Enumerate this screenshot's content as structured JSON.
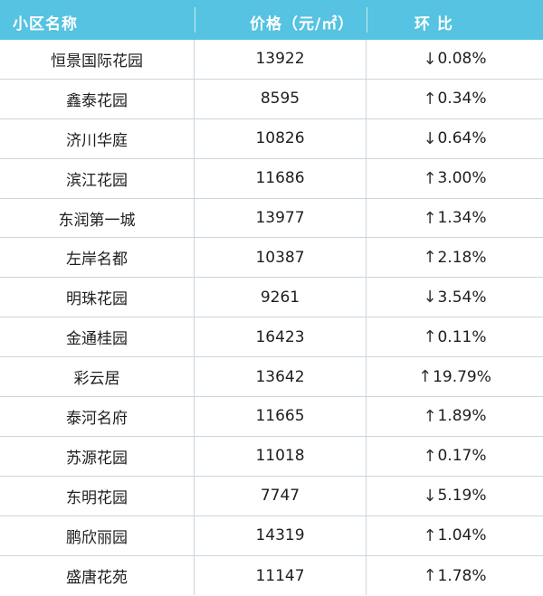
{
  "table": {
    "headers": {
      "name": "小区名称",
      "price": "价格（元/㎡）",
      "change": "环比"
    },
    "rows": [
      {
        "name": "恒景国际花园",
        "price": "13922",
        "direction": "down",
        "arrow": "↓",
        "change": "0.08%"
      },
      {
        "name": "鑫泰花园",
        "price": "8595",
        "direction": "up",
        "arrow": "↑",
        "change": "0.34%"
      },
      {
        "name": "济川华庭",
        "price": "10826",
        "direction": "down",
        "arrow": "↓",
        "change": "0.64%"
      },
      {
        "name": "滨江花园",
        "price": "11686",
        "direction": "up",
        "arrow": "↑",
        "change": "3.00%"
      },
      {
        "name": "东润第一城",
        "price": "13977",
        "direction": "up",
        "arrow": "↑",
        "change": "1.34%"
      },
      {
        "name": "左岸名都",
        "price": "10387",
        "direction": "up",
        "arrow": "↑",
        "change": "2.18%"
      },
      {
        "name": "明珠花园",
        "price": "9261",
        "direction": "down",
        "arrow": "↓",
        "change": "3.54%"
      },
      {
        "name": "金通桂园",
        "price": "16423",
        "direction": "up",
        "arrow": "↑",
        "change": "0.11%"
      },
      {
        "name": "彩云居",
        "price": "13642",
        "direction": "up",
        "arrow": "↑",
        "change": "19.79%"
      },
      {
        "name": "泰河名府",
        "price": "11665",
        "direction": "up",
        "arrow": "↑",
        "change": "1.89%"
      },
      {
        "name": "苏源花园",
        "price": "11018",
        "direction": "up",
        "arrow": "↑",
        "change": "0.17%"
      },
      {
        "name": "东明花园",
        "price": "7747",
        "direction": "down",
        "arrow": "↓",
        "change": "5.19%"
      },
      {
        "name": "鹏欣丽园",
        "price": "14319",
        "direction": "up",
        "arrow": "↑",
        "change": "1.04%"
      },
      {
        "name": "盛唐花苑",
        "price": "11147",
        "direction": "up",
        "arrow": "↑",
        "change": "1.78%"
      }
    ]
  },
  "colors": {
    "header_bg": "#55c3e1",
    "header_text": "#ffffff",
    "grid_line": "#c9d6df"
  }
}
